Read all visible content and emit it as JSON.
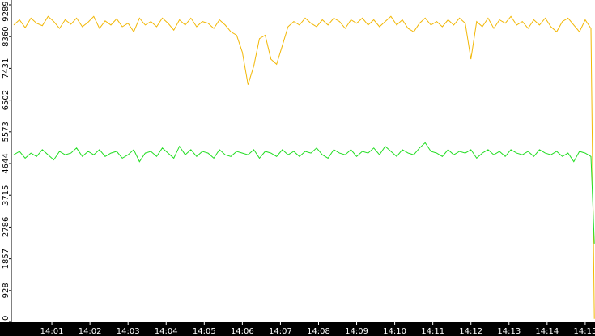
{
  "chart_data": {
    "type": "line",
    "x": [
      0,
      0.15,
      0.3,
      0.45,
      0.6,
      0.75,
      0.9,
      1.05,
      1.2,
      1.35,
      1.5,
      1.65,
      1.8,
      1.95,
      2.1,
      2.25,
      2.4,
      2.55,
      2.7,
      2.85,
      3,
      3.15,
      3.3,
      3.45,
      3.6,
      3.75,
      3.9,
      4.05,
      4.2,
      4.35,
      4.5,
      4.65,
      4.8,
      4.95,
      5.1,
      5.25,
      5.4,
      5.55,
      5.7,
      5.85,
      6,
      6.15,
      6.3,
      6.45,
      6.6,
      6.75,
      6.9,
      7.05,
      7.2,
      7.35,
      7.5,
      7.65,
      7.8,
      7.95,
      8.1,
      8.25,
      8.4,
      8.55,
      8.7,
      8.85,
      9,
      9.15,
      9.3,
      9.45,
      9.6,
      9.75,
      9.9,
      10.05,
      10.2,
      10.35,
      10.5,
      10.65,
      10.8,
      10.95,
      11.1,
      11.25,
      11.4,
      11.55,
      11.7,
      11.85,
      12,
      12.15,
      12.3,
      12.45,
      12.6,
      12.75,
      12.9,
      13.05,
      13.2,
      13.35,
      13.5,
      13.65,
      13.8,
      13.95,
      14.1,
      14.25,
      14.4,
      14.55,
      14.7,
      14.85,
      15,
      15.15,
      15.24
    ],
    "series": [
      {
        "color": "#f2b705",
        "values": [
          8700,
          8850,
          8620,
          8900,
          8750,
          8680,
          8950,
          8800,
          8600,
          8850,
          8720,
          8900,
          8650,
          8780,
          8950,
          8600,
          8820,
          8700,
          8880,
          8650,
          8750,
          8500,
          8900,
          8700,
          8800,
          8650,
          8900,
          8750,
          8550,
          8850,
          8700,
          8900,
          8650,
          8800,
          8750,
          8600,
          8850,
          8700,
          8500,
          8400,
          7900,
          6950,
          7500,
          8300,
          8400,
          7700,
          7550,
          8100,
          8650,
          8800,
          8700,
          8900,
          8750,
          8650,
          8850,
          8700,
          8900,
          8800,
          8600,
          8850,
          8750,
          8900,
          8700,
          8850,
          8650,
          8800,
          8950,
          8700,
          8850,
          8600,
          8500,
          8750,
          8900,
          8700,
          8800,
          8650,
          8850,
          8700,
          8900,
          8750,
          7700,
          8800,
          8650,
          8900,
          8600,
          8850,
          8750,
          8950,
          8700,
          8800,
          8600,
          8850,
          8700,
          8900,
          8650,
          8500,
          8800,
          8900,
          8700,
          8500,
          8850,
          8600,
          100
        ]
      },
      {
        "color": "#22dd22",
        "values": [
          4900,
          5000,
          4800,
          4950,
          4850,
          5050,
          4900,
          4750,
          5000,
          4900,
          4950,
          5100,
          4850,
          5000,
          4900,
          5050,
          4850,
          4950,
          5000,
          4800,
          4900,
          5050,
          4700,
          4950,
          5000,
          4850,
          5100,
          4950,
          4800,
          5150,
          4900,
          5050,
          4850,
          5000,
          4950,
          4800,
          5050,
          4900,
          4850,
          5000,
          4950,
          4900,
          5050,
          4800,
          5000,
          4950,
          4850,
          5050,
          4900,
          5000,
          4850,
          5000,
          4950,
          5100,
          4900,
          4800,
          5050,
          4950,
          4900,
          5050,
          4850,
          5000,
          4950,
          5100,
          4900,
          5150,
          5000,
          4850,
          5050,
          4950,
          4900,
          5100,
          5250,
          5000,
          4950,
          4850,
          5050,
          4900,
          5000,
          4950,
          5050,
          4800,
          4950,
          5050,
          4900,
          5000,
          4850,
          5050,
          4950,
          4900,
          5000,
          4850,
          5050,
          4950,
          4900,
          5000,
          4850,
          4950,
          4700,
          5000,
          4950,
          4850,
          2300
        ]
      }
    ],
    "xlim": [
      0,
      15.3
    ],
    "xticks": [
      {
        "value": 1,
        "label": "14:01"
      },
      {
        "value": 2,
        "label": "14:02"
      },
      {
        "value": 3,
        "label": "14:03"
      },
      {
        "value": 4,
        "label": "14:04"
      },
      {
        "value": 5,
        "label": "14:05"
      },
      {
        "value": 6,
        "label": "14:06"
      },
      {
        "value": 7,
        "label": "14:07"
      },
      {
        "value": 8,
        "label": "14:08"
      },
      {
        "value": 9,
        "label": "14:09"
      },
      {
        "value": 10,
        "label": "14:10"
      },
      {
        "value": 11,
        "label": "14:11"
      },
      {
        "value": 12,
        "label": "14:12"
      },
      {
        "value": 13,
        "label": "14:13"
      },
      {
        "value": 14,
        "label": "14:14"
      },
      {
        "value": 15,
        "label": "14:15"
      }
    ],
    "ylim": [
      0,
      9289
    ],
    "yticks": [
      0,
      928,
      1857,
      2786,
      3715,
      4644,
      5573,
      6502,
      7431,
      8360,
      9289
    ]
  }
}
